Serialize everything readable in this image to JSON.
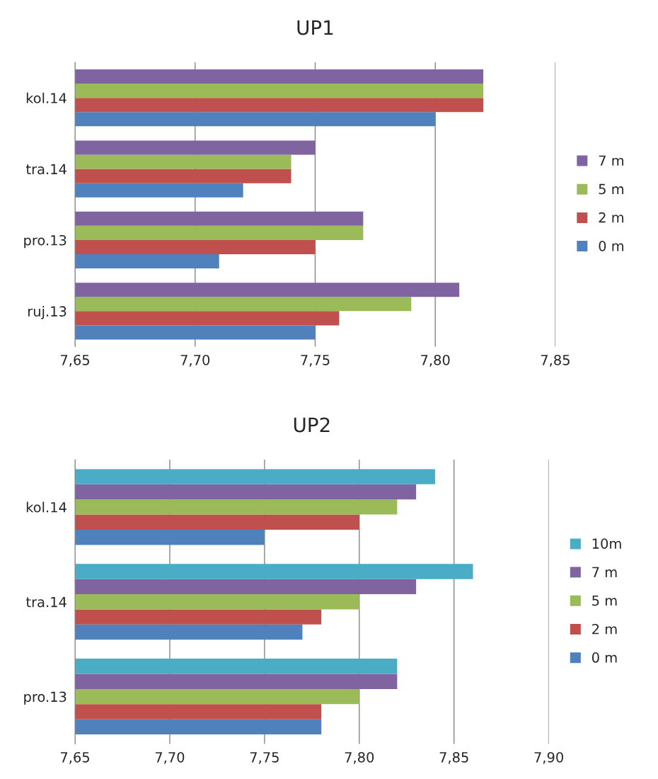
{
  "chart_data": [
    {
      "type": "bar",
      "orientation": "horizontal",
      "title": "UP1",
      "categories": [
        "kol.14",
        "tra.14",
        "pro.13",
        "ruj.13"
      ],
      "series": [
        {
          "name": "0 m",
          "color": "#4f81bd",
          "values": [
            7.8,
            7.72,
            7.71,
            7.75
          ]
        },
        {
          "name": "2 m",
          "color": "#c0504d",
          "values": [
            7.82,
            7.74,
            7.75,
            7.76
          ]
        },
        {
          "name": "5 m",
          "color": "#9bbb59",
          "values": [
            7.82,
            7.74,
            7.77,
            7.79
          ]
        },
        {
          "name": "7 m",
          "color": "#8064a2",
          "values": [
            7.82,
            7.75,
            7.77,
            7.81
          ]
        }
      ],
      "xlim": [
        7.65,
        7.85
      ],
      "xticks": [
        {
          "value": 7.65,
          "label": "7,65"
        },
        {
          "value": 7.7,
          "label": "7,70"
        },
        {
          "value": 7.75,
          "label": "7,75"
        },
        {
          "value": 7.8,
          "label": "7,80"
        },
        {
          "value": 7.85,
          "label": "7,85"
        }
      ],
      "grid": "x",
      "legend": "right"
    },
    {
      "type": "bar",
      "orientation": "horizontal",
      "title": "UP2",
      "categories": [
        "kol.14",
        "tra.14",
        "pro.13"
      ],
      "series": [
        {
          "name": "0 m",
          "color": "#4f81bd",
          "values": [
            7.75,
            7.77,
            7.78
          ]
        },
        {
          "name": "2 m",
          "color": "#c0504d",
          "values": [
            7.8,
            7.78,
            7.78
          ]
        },
        {
          "name": "5 m",
          "color": "#9bbb59",
          "values": [
            7.82,
            7.8,
            7.8
          ]
        },
        {
          "name": "7 m",
          "color": "#8064a2",
          "values": [
            7.83,
            7.83,
            7.82
          ]
        },
        {
          "name": "10m",
          "color": "#4bacc6",
          "values": [
            7.84,
            7.86,
            7.82
          ]
        }
      ],
      "xlim": [
        7.65,
        7.9
      ],
      "xticks": [
        {
          "value": 7.65,
          "label": "7,65"
        },
        {
          "value": 7.7,
          "label": "7,70"
        },
        {
          "value": 7.75,
          "label": "7,75"
        },
        {
          "value": 7.8,
          "label": "7,80"
        },
        {
          "value": 7.85,
          "label": "7,85"
        },
        {
          "value": 7.9,
          "label": "7,90"
        }
      ],
      "grid": "x",
      "legend": "right"
    }
  ]
}
